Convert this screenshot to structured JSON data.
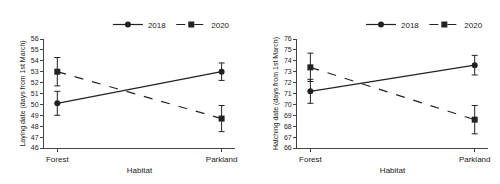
{
  "chart_data": [
    {
      "type": "line",
      "xlabel": "Habitat",
      "ylabel": "Laying date (days from 1st March)",
      "categories": [
        "Forest",
        "Parkland"
      ],
      "series": [
        {
          "name": "2018",
          "color": "#222222",
          "values": [
            50.1,
            53.0
          ],
          "error": [
            1.1,
            0.8
          ],
          "marker": "circle",
          "line_style": "solid"
        },
        {
          "name": "2020",
          "color": "#222222",
          "values": [
            53.0,
            48.7
          ],
          "error": [
            1.3,
            1.2
          ],
          "marker": "square",
          "line_style": "dashed"
        }
      ],
      "ylim": [
        46,
        56
      ],
      "yticks": [
        46,
        47,
        48,
        49,
        50,
        51,
        52,
        53,
        54,
        55,
        56
      ],
      "grid": false,
      "legend": "upper right"
    },
    {
      "type": "line",
      "xlabel": "Habitat",
      "ylabel": "Hatching date (days from 1st March)",
      "categories": [
        "Forest",
        "Parkland"
      ],
      "series": [
        {
          "name": "2018",
          "color": "#222222",
          "values": [
            71.2,
            73.6
          ],
          "error": [
            1.1,
            0.9
          ],
          "marker": "circle",
          "line_style": "solid"
        },
        {
          "name": "2020",
          "color": "#222222",
          "values": [
            73.4,
            68.6
          ],
          "error": [
            1.3,
            1.3
          ],
          "marker": "square",
          "line_style": "dashed"
        }
      ],
      "ylim": [
        66,
        76
      ],
      "yticks": [
        66,
        67,
        68,
        69,
        70,
        71,
        72,
        73,
        74,
        75,
        76
      ],
      "grid": false,
      "legend": "upper right"
    }
  ]
}
